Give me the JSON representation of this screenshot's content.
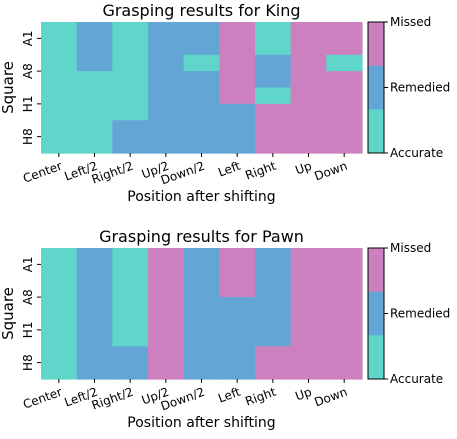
{
  "colors": {
    "accurate": "#5fd6c9",
    "remedied": "#63a6d6",
    "missed": "#cd80c0"
  },
  "chart_data": [
    {
      "type": "heatmap",
      "title": "Grasping results for King",
      "xlabel": "Position after shifting",
      "ylabel": "Square",
      "x_categories": [
        "Center",
        "Left/2",
        "Right/2",
        "Up/2",
        "Down/2",
        "Left",
        "Right",
        "Up",
        "Down"
      ],
      "y_ticks": [
        "A1",
        "A8",
        "H1",
        "H8"
      ],
      "rows": [
        "A1",
        "A1",
        "A8",
        "A8",
        "H1",
        "H1",
        "H8",
        "H8"
      ],
      "values": [
        [
          0,
          1,
          0,
          1,
          1,
          2,
          0,
          2,
          2
        ],
        [
          0,
          1,
          0,
          1,
          1,
          2,
          0,
          2,
          2
        ],
        [
          0,
          1,
          0,
          1,
          0,
          2,
          1,
          2,
          0
        ],
        [
          0,
          0,
          0,
          1,
          1,
          2,
          1,
          2,
          2
        ],
        [
          0,
          0,
          0,
          1,
          1,
          2,
          0,
          2,
          2
        ],
        [
          0,
          0,
          0,
          1,
          1,
          1,
          2,
          2,
          2
        ],
        [
          0,
          0,
          1,
          1,
          1,
          1,
          2,
          2,
          2
        ],
        [
          0,
          0,
          1,
          1,
          1,
          1,
          2,
          2,
          2
        ]
      ],
      "value_labels": [
        "Accurate",
        "Remedied",
        "Missed"
      ],
      "colorbar": {
        "ticks": [
          "Missed",
          "Remedied",
          "Accurate"
        ]
      }
    },
    {
      "type": "heatmap",
      "title": "Grasping results for Pawn",
      "xlabel": "Position after shifting",
      "ylabel": "Square",
      "x_categories": [
        "Center",
        "Left/2",
        "Right/2",
        "Up/2",
        "Down/2",
        "Left",
        "Right",
        "Up",
        "Down"
      ],
      "y_ticks": [
        "A1",
        "A8",
        "H1",
        "H8"
      ],
      "rows": [
        "A1",
        "A1",
        "A8",
        "A8",
        "H1",
        "H1",
        "H8",
        "H8"
      ],
      "values": [
        [
          0,
          1,
          0,
          2,
          1,
          2,
          1,
          2,
          2
        ],
        [
          0,
          1,
          0,
          2,
          1,
          2,
          1,
          2,
          2
        ],
        [
          0,
          1,
          0,
          2,
          1,
          2,
          1,
          2,
          2
        ],
        [
          0,
          1,
          0,
          2,
          1,
          1,
          1,
          2,
          2
        ],
        [
          0,
          1,
          0,
          2,
          1,
          1,
          1,
          2,
          2
        ],
        [
          0,
          1,
          0,
          2,
          1,
          1,
          1,
          2,
          2
        ],
        [
          0,
          1,
          1,
          2,
          1,
          1,
          2,
          2,
          2
        ],
        [
          0,
          1,
          1,
          2,
          1,
          1,
          2,
          2,
          2
        ]
      ],
      "value_labels": [
        "Accurate",
        "Remedied",
        "Missed"
      ],
      "colorbar": {
        "ticks": [
          "Missed",
          "Remedied",
          "Accurate"
        ]
      }
    }
  ]
}
